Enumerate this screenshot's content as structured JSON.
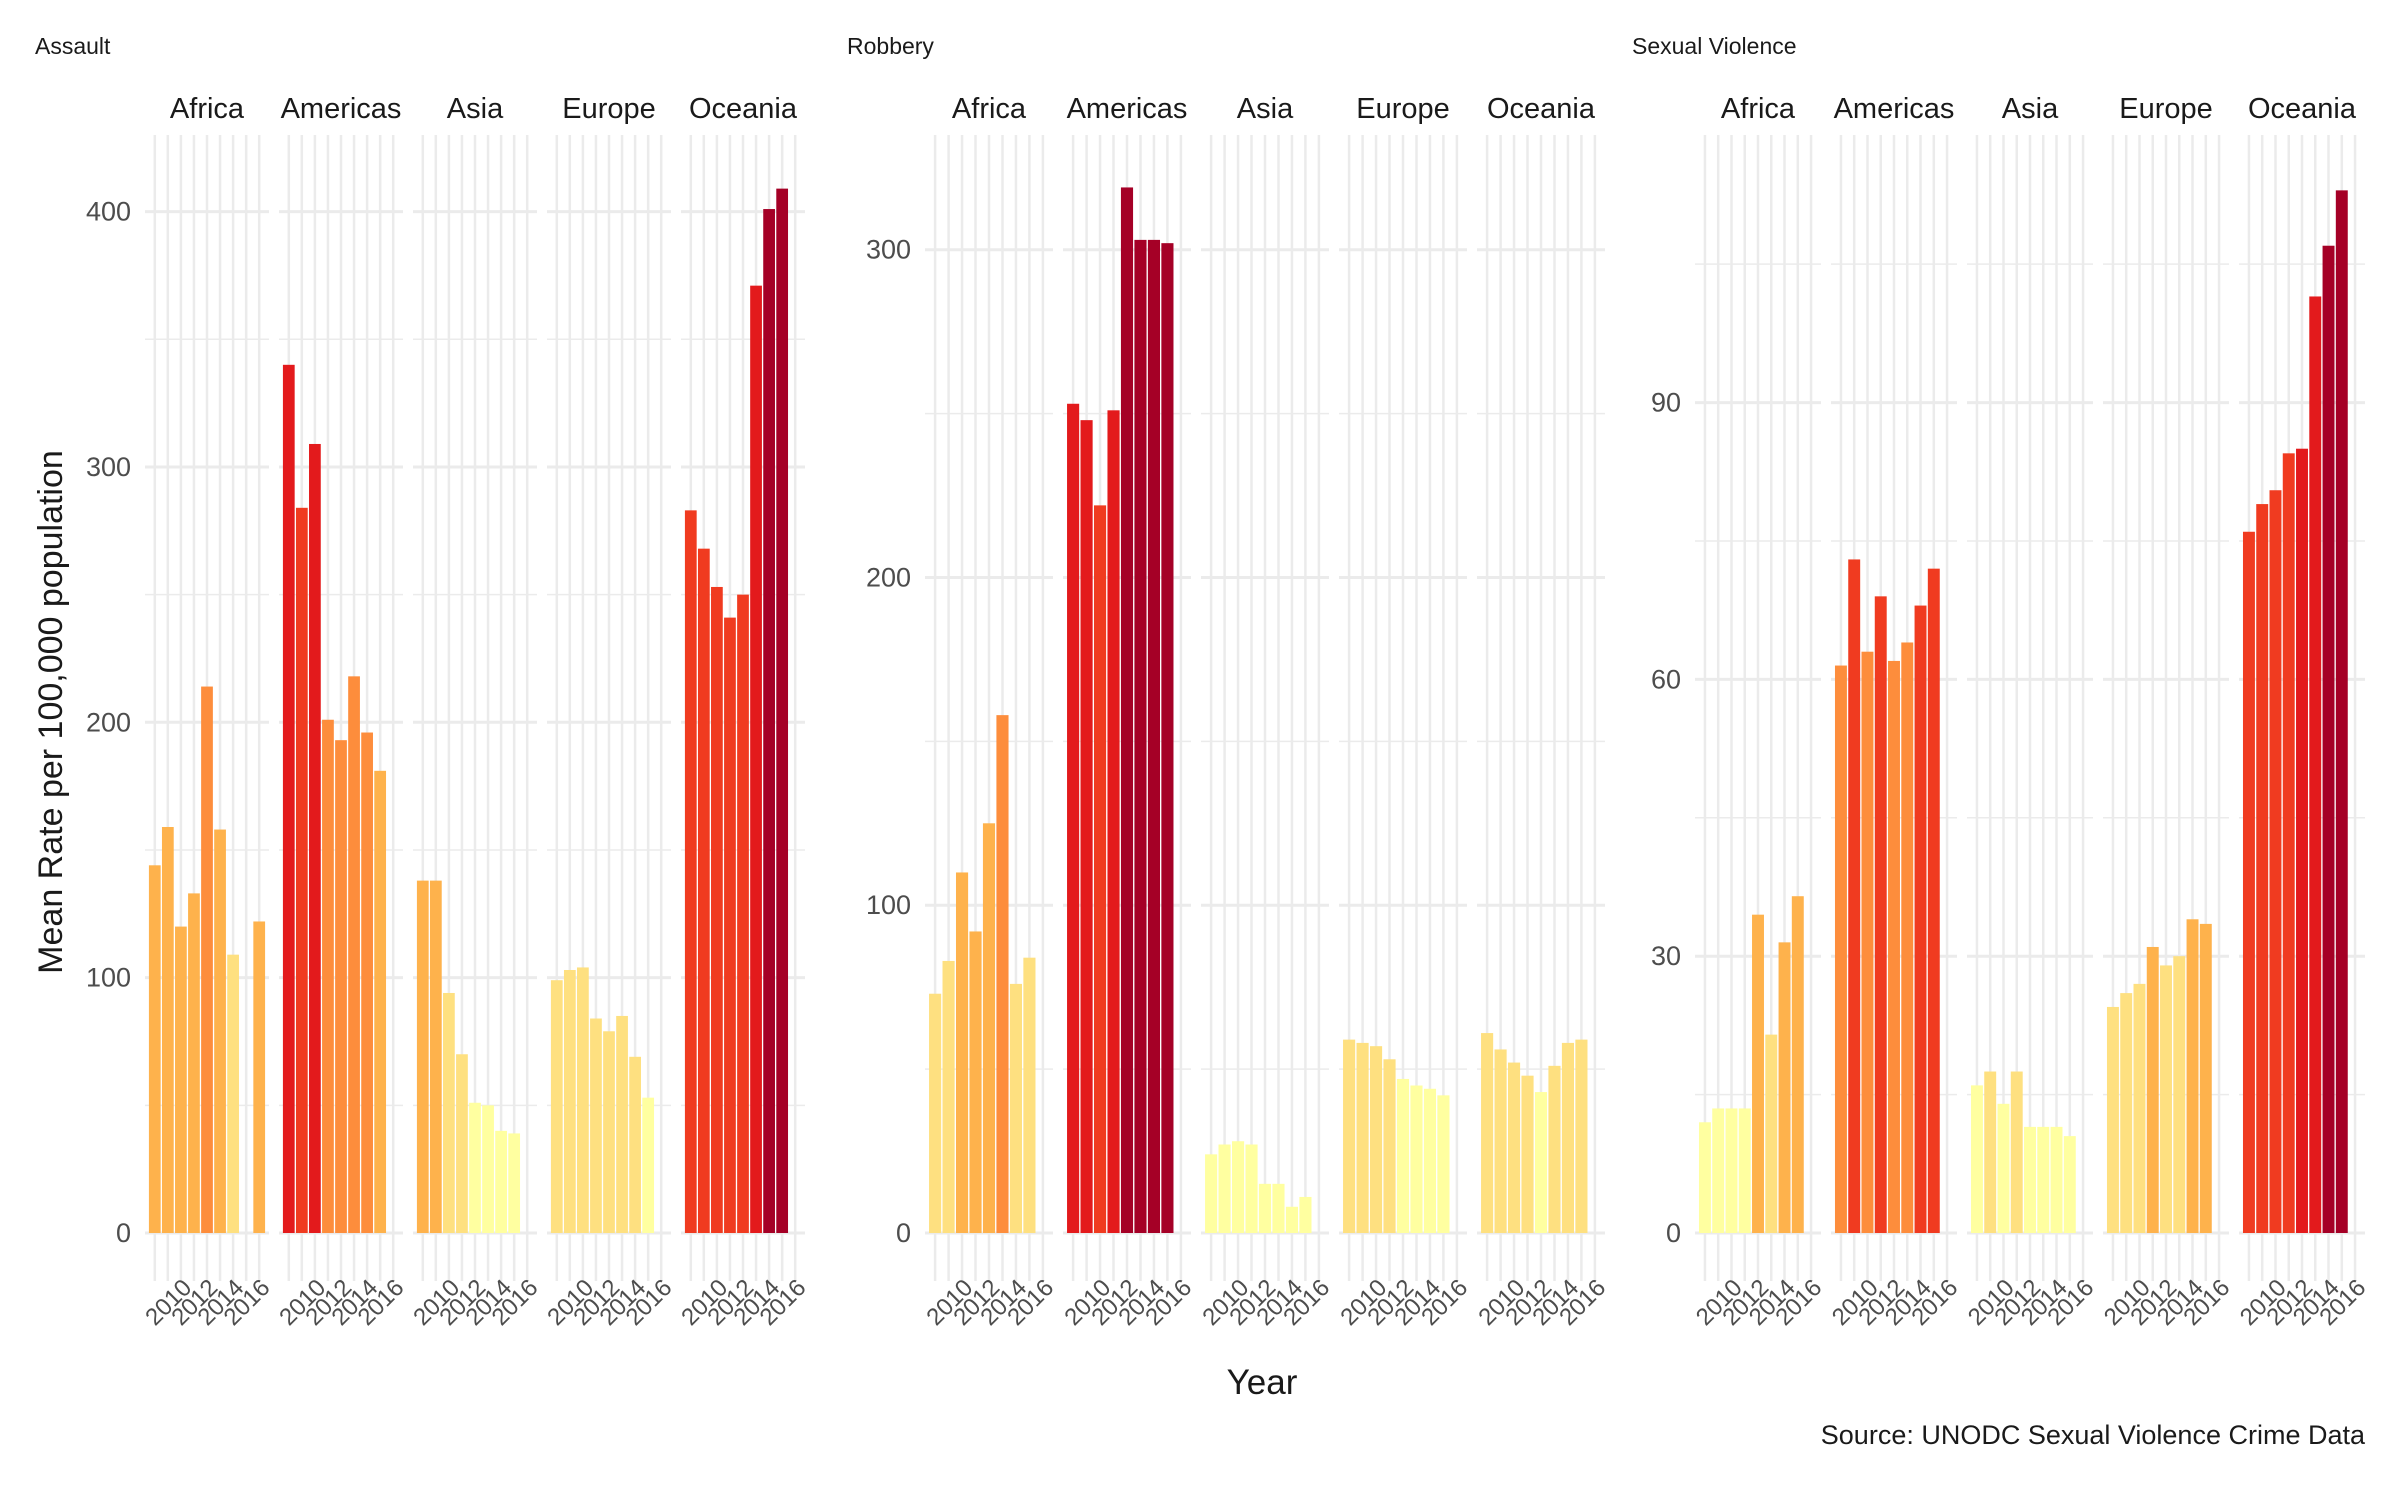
{
  "ylabel": "Mean Rate per 100,000 population",
  "xlabel": "Year",
  "caption": "Source: UNODC Sexual Violence Crime Data",
  "regions": [
    "Africa",
    "Americas",
    "Asia",
    "Europe",
    "Oceania"
  ],
  "x_tick_labels": [
    "2010",
    "2012",
    "2014",
    "2016"
  ],
  "colors": {
    "low": "#FFFFA0",
    "mid1": "#FEE080",
    "mid2": "#FEB24C",
    "mid3": "#FD8D3C",
    "mid4": "#F03B20",
    "high": "#E31A1C",
    "max": "#A50026",
    "grid": "#EBEBEB",
    "text": "#1A1A1A",
    "tick": "#4D4D4D"
  },
  "chart_data": [
    {
      "type": "bar",
      "title": "Assault",
      "x": [
        2008,
        2009,
        2010,
        2011,
        2012,
        2013,
        2014,
        2015,
        2016
      ],
      "ylim": [
        0,
        430
      ],
      "yticks": [
        0,
        100,
        200,
        300,
        400
      ],
      "series": [
        {
          "name": "Africa",
          "values": [
            144,
            159,
            120,
            133,
            214,
            158,
            109,
            null,
            122
          ]
        },
        {
          "name": "Americas",
          "values": [
            340,
            284,
            309,
            201,
            193,
            218,
            196,
            181,
            null
          ]
        },
        {
          "name": "Asia",
          "values": [
            138,
            138,
            94,
            70,
            51,
            50,
            40,
            39,
            null
          ]
        },
        {
          "name": "Europe",
          "values": [
            99,
            103,
            104,
            84,
            79,
            85,
            69,
            53,
            null
          ]
        },
        {
          "name": "Oceania",
          "values": [
            283,
            268,
            253,
            241,
            250,
            371,
            401,
            409,
            null
          ]
        }
      ]
    },
    {
      "type": "bar",
      "title": "Robbery",
      "x": [
        2008,
        2009,
        2010,
        2011,
        2012,
        2013,
        2014,
        2015,
        2016
      ],
      "ylim": [
        0,
        335
      ],
      "yticks": [
        0,
        100,
        200,
        300
      ],
      "series": [
        {
          "name": "Africa",
          "values": [
            73,
            83,
            110,
            92,
            125,
            158,
            76,
            84,
            null
          ]
        },
        {
          "name": "Americas",
          "values": [
            253,
            248,
            222,
            251,
            319,
            303,
            303,
            302,
            null
          ]
        },
        {
          "name": "Asia",
          "values": [
            24,
            27,
            28,
            27,
            15,
            15,
            8,
            11,
            null
          ]
        },
        {
          "name": "Europe",
          "values": [
            59,
            58,
            57,
            53,
            47,
            45,
            44,
            42,
            null
          ]
        },
        {
          "name": "Oceania",
          "values": [
            61,
            56,
            52,
            48,
            43,
            51,
            58,
            59,
            null
          ]
        }
      ]
    },
    {
      "type": "bar",
      "title": "Sexual Violence",
      "x": [
        2008,
        2009,
        2010,
        2011,
        2012,
        2013,
        2014,
        2015,
        2016
      ],
      "ylim": [
        0,
        119
      ],
      "yticks": [
        0,
        30,
        60,
        90
      ],
      "series": [
        {
          "name": "Africa",
          "values": [
            12,
            13.5,
            13.5,
            13.5,
            34.5,
            21.5,
            31.5,
            36.5,
            null
          ]
        },
        {
          "name": "Americas",
          "values": [
            61.5,
            73,
            63,
            69,
            62,
            64,
            68,
            72,
            null
          ]
        },
        {
          "name": "Asia",
          "values": [
            16,
            17.5,
            14,
            17.5,
            11.5,
            11.5,
            11.5,
            10.5,
            null
          ]
        },
        {
          "name": "Europe",
          "values": [
            24.5,
            26,
            27,
            31,
            29,
            30,
            34,
            33.5,
            null
          ]
        },
        {
          "name": "Oceania",
          "values": [
            76,
            79,
            80.5,
            84.5,
            85,
            101.5,
            107,
            113,
            null
          ]
        }
      ]
    }
  ]
}
